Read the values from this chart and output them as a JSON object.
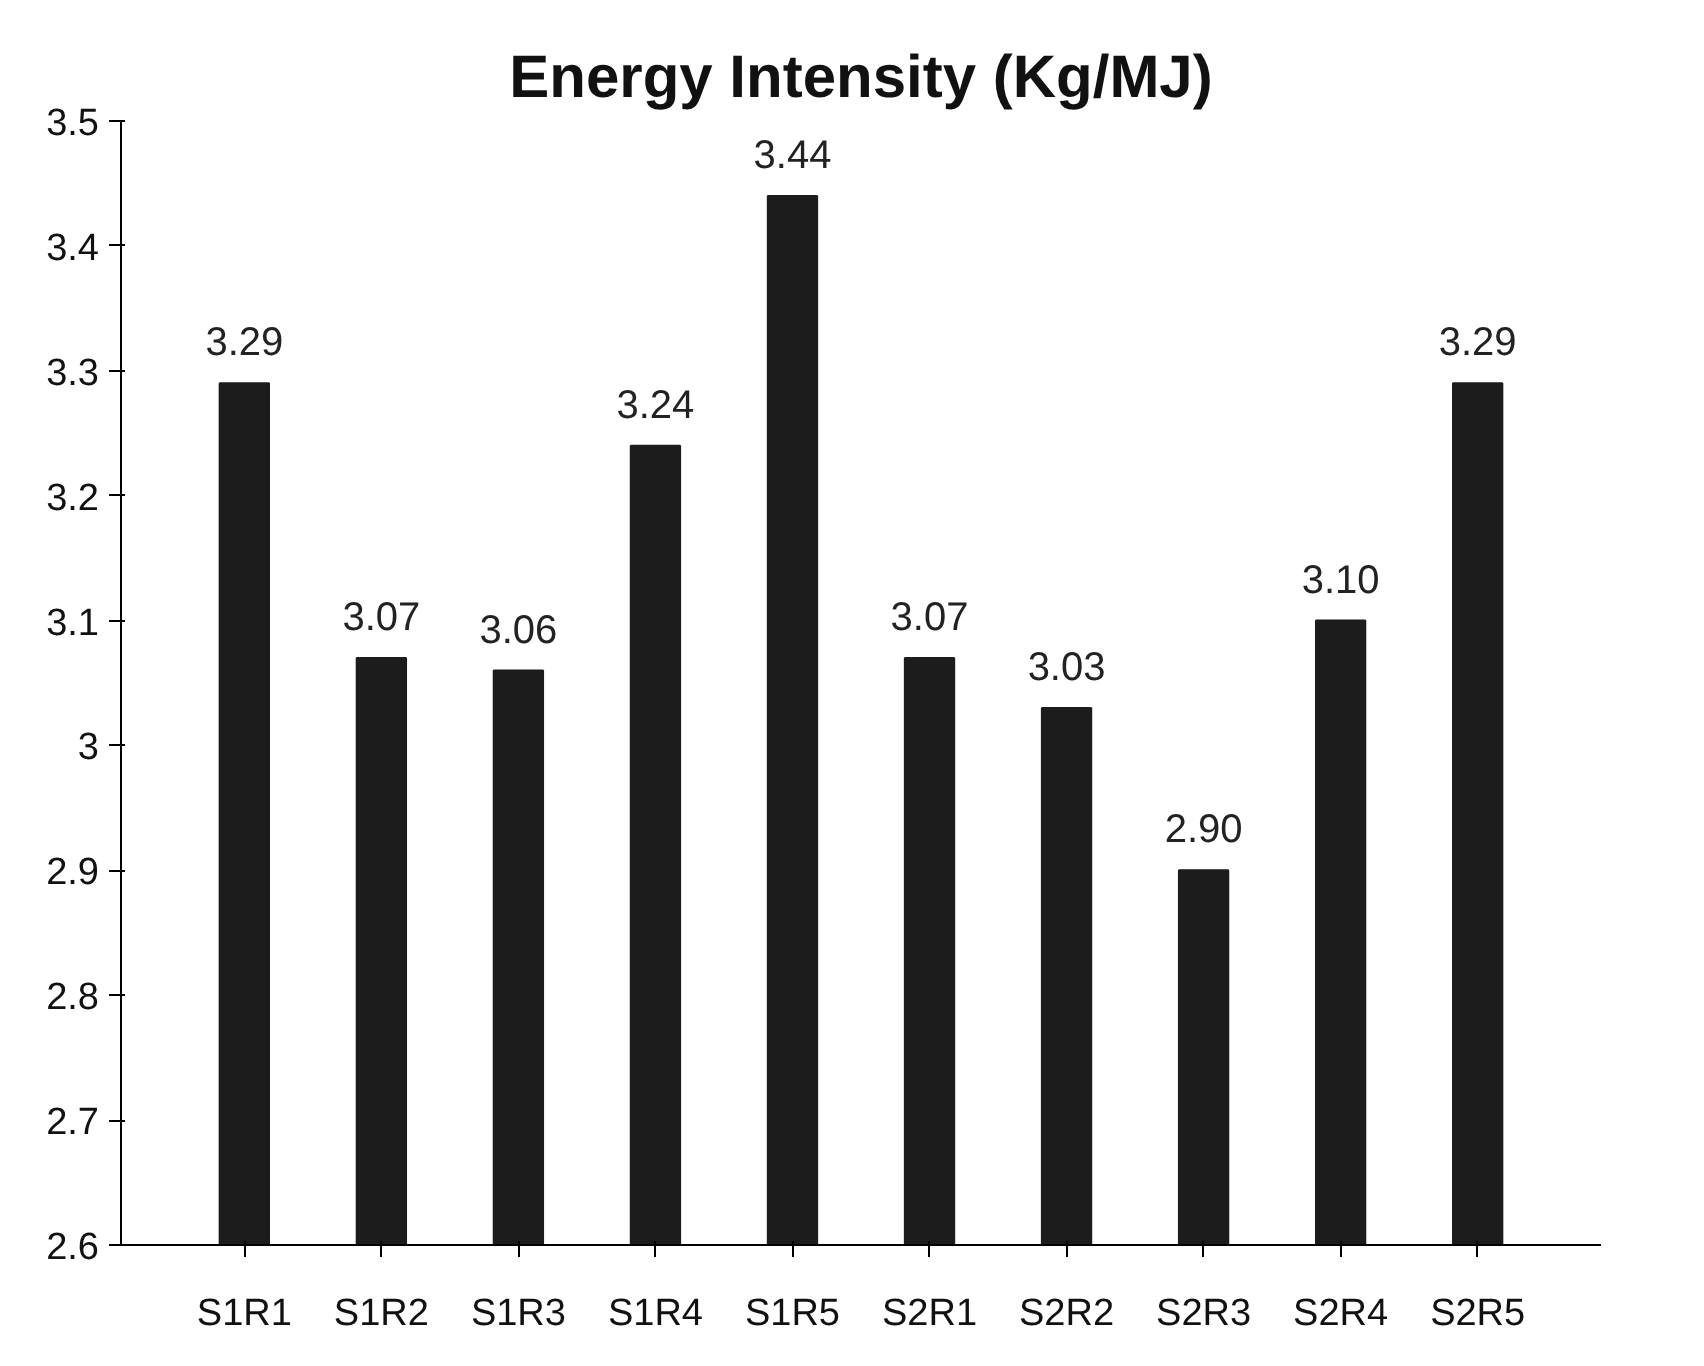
{
  "chart_data": {
    "type": "bar",
    "title": "Energy Intensity (Kg/MJ)",
    "categories": [
      "S1R1",
      "S1R2",
      "S1R3",
      "S1R4",
      "S1R5",
      "S2R1",
      "S2R2",
      "S2R3",
      "S2R4",
      "S2R5"
    ],
    "values": [
      3.29,
      3.07,
      3.06,
      3.24,
      3.44,
      3.07,
      3.03,
      2.9,
      3.1,
      3.29
    ],
    "value_labels": [
      "3.29",
      "3.07",
      "3.06",
      "3.24",
      "3.44",
      "3.07",
      "3.03",
      "2.90",
      "3.10",
      "3.29"
    ],
    "color": "#1c1c1c",
    "ylim": [
      2.6,
      3.5
    ],
    "yticks": [
      2.6,
      2.7,
      2.8,
      2.9,
      3,
      3.1,
      3.2,
      3.3,
      3.4,
      3.5
    ],
    "grid": false
  }
}
